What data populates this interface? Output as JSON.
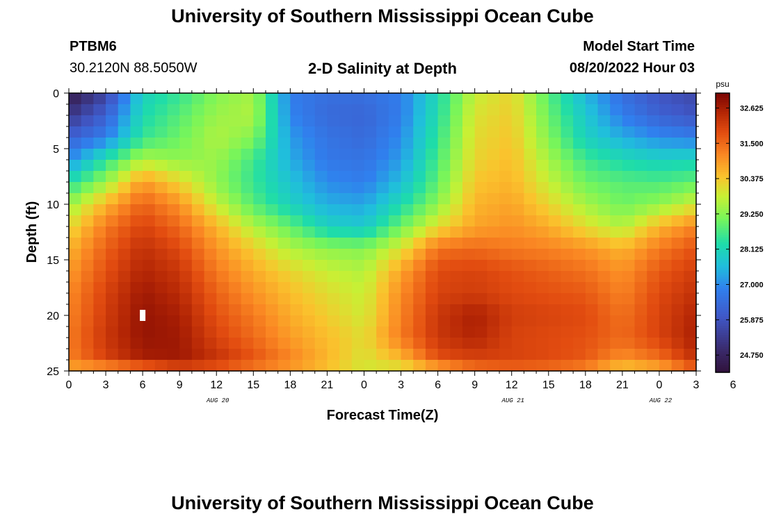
{
  "header": {
    "title": "University of Southern Mississippi Ocean Cube",
    "footer_title": "University of Southern Mississippi Ocean Cube",
    "station_id": "PTBM6",
    "station_coords": "30.2120N  88.5050W",
    "model_start_label": "Model Start Time",
    "model_start_value": "08/20/2022 Hour 03"
  },
  "chart_data": {
    "type": "heatmap",
    "title": "2-D Salinity at Depth",
    "xlabel": "Forecast Time(Z)",
    "ylabel": "Depth (ft)",
    "ylim": [
      0,
      25
    ],
    "y_ticks": [
      "0",
      "5",
      "10",
      "15",
      "20",
      "25"
    ],
    "x_range_hours": [
      0,
      51
    ],
    "x_ticks": [
      "0",
      "3",
      "6",
      "9",
      "12",
      "15",
      "18",
      "21",
      "0",
      "3",
      "6",
      "9",
      "12",
      "15",
      "18",
      "21",
      "0",
      "3",
      "6"
    ],
    "date_labels": [
      {
        "hour": 12,
        "text": "AUG 20"
      },
      {
        "hour": 36,
        "text": "AUG 21"
      },
      {
        "hour": 48,
        "text": "AUG 22"
      }
    ],
    "colorbar": {
      "unit": "psu",
      "min": 24.2,
      "max": 33.1,
      "tick_values": [
        32.625,
        31.5,
        30.375,
        29.25,
        28.125,
        27.0,
        25.875,
        24.75
      ],
      "tick_labels": [
        "32.625",
        "31.500",
        "30.375",
        "29.250",
        "28.125",
        "27.000",
        "25.875",
        "24.750"
      ]
    },
    "marker": {
      "hour": 6,
      "depth_ft": 20
    },
    "grid": "51 hourly columns x 25 one-foot depth rows",
    "salinity_field": {
      "hours": [
        0,
        3,
        6,
        9,
        12,
        15,
        18,
        21,
        24,
        27,
        30,
        33,
        36,
        39,
        42,
        45,
        48,
        51
      ],
      "depths_ft": [
        0,
        2,
        4,
        6,
        8,
        10,
        12,
        14,
        16,
        18,
        20,
        22,
        24,
        25
      ],
      "psu": [
        [
          24.4,
          25.5,
          28.0,
          28.5,
          29.2,
          29.5,
          26.8,
          26.5,
          26.5,
          26.8,
          28.2,
          29.8,
          30.2,
          28.8,
          27.5,
          26.5,
          25.9,
          25.6
        ],
        [
          25.2,
          26.2,
          28.2,
          28.8,
          29.4,
          29.6,
          26.9,
          26.4,
          26.3,
          26.8,
          28.3,
          30.0,
          30.3,
          29.0,
          27.8,
          26.8,
          26.2,
          25.9
        ],
        [
          26.2,
          26.8,
          28.5,
          29.0,
          29.6,
          29.2,
          27.2,
          26.6,
          26.4,
          27.0,
          28.5,
          30.1,
          30.4,
          29.2,
          28.0,
          27.4,
          27.0,
          26.8
        ],
        [
          27.0,
          28.4,
          29.6,
          29.3,
          29.4,
          28.6,
          27.4,
          26.7,
          26.6,
          27.2,
          28.7,
          30.2,
          30.5,
          29.5,
          28.6,
          28.2,
          28.0,
          28.1
        ],
        [
          28.3,
          29.4,
          30.9,
          30.2,
          29.3,
          28.5,
          27.7,
          27.0,
          26.8,
          27.6,
          28.9,
          30.4,
          30.6,
          29.8,
          29.0,
          28.8,
          28.7,
          28.9
        ],
        [
          29.4,
          30.6,
          31.6,
          31.0,
          29.8,
          28.8,
          28.0,
          27.4,
          27.3,
          28.2,
          29.3,
          30.6,
          30.8,
          30.2,
          29.5,
          29.0,
          29.3,
          29.9
        ],
        [
          30.1,
          31.3,
          32.0,
          31.5,
          30.6,
          29.6,
          28.9,
          28.0,
          27.8,
          29.0,
          30.1,
          30.8,
          31.0,
          30.7,
          30.1,
          29.6,
          30.6,
          31.2
        ],
        [
          30.6,
          31.6,
          32.3,
          31.9,
          31.0,
          30.3,
          29.6,
          29.3,
          29.2,
          30.0,
          31.4,
          31.5,
          31.3,
          31.2,
          31.0,
          30.6,
          31.3,
          31.8
        ],
        [
          30.9,
          31.8,
          32.5,
          32.2,
          31.3,
          30.7,
          30.2,
          29.8,
          29.6,
          30.8,
          31.9,
          32.0,
          31.8,
          31.6,
          31.4,
          31.0,
          31.7,
          32.1
        ],
        [
          31.1,
          32.0,
          32.7,
          32.4,
          31.6,
          31.0,
          30.5,
          30.1,
          29.8,
          31.1,
          32.0,
          32.1,
          31.9,
          31.8,
          31.7,
          31.2,
          31.9,
          32.3
        ],
        [
          31.2,
          32.1,
          32.8,
          32.6,
          31.8,
          31.3,
          30.7,
          30.3,
          29.9,
          31.2,
          32.2,
          32.6,
          32.1,
          32.0,
          31.9,
          31.4,
          32.0,
          32.5
        ],
        [
          31.3,
          32.2,
          32.8,
          32.7,
          32.0,
          31.5,
          30.9,
          30.5,
          30.1,
          31.3,
          32.2,
          32.5,
          32.0,
          31.9,
          31.8,
          31.5,
          32.0,
          32.6
        ],
        [
          31.2,
          32.0,
          32.6,
          32.7,
          32.3,
          31.8,
          31.2,
          30.6,
          30.0,
          30.5,
          31.8,
          32.0,
          32.0,
          31.9,
          31.7,
          31.0,
          31.4,
          32.3
        ],
        [
          30.6,
          30.6,
          31.0,
          31.6,
          31.5,
          31.1,
          30.8,
          30.4,
          29.9,
          29.9,
          30.4,
          31.2,
          31.4,
          31.3,
          31.0,
          30.2,
          30.5,
          31.4
        ]
      ]
    }
  }
}
